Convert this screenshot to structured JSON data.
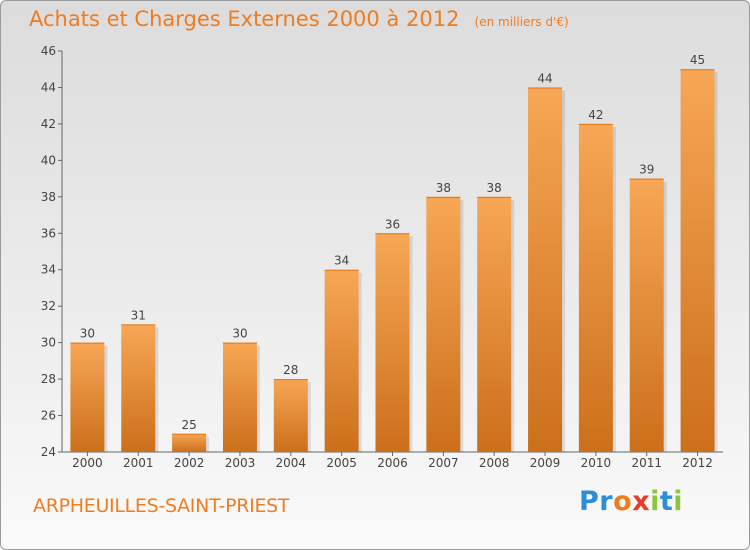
{
  "title": "Achats et Charges Externes 2000 à 2012",
  "units": "(en milliers d'€)",
  "commune": "ARPHEUILLES-SAINT-PRIEST",
  "logo": {
    "text": "Proxiti",
    "letters": [
      {
        "ch": "P",
        "color": "#2a8fd6"
      },
      {
        "ch": "r",
        "color": "#2a8fd6"
      },
      {
        "ch": "o",
        "color": "#f07c1e"
      },
      {
        "ch": "x",
        "color": "#e8392a"
      },
      {
        "ch": "i",
        "color": "#8cc43a"
      },
      {
        "ch": "t",
        "color": "#2a8fd6"
      },
      {
        "ch": "i",
        "color": "#8cc43a"
      }
    ]
  },
  "colors": {
    "accent": "#f07c1e",
    "bar_light": "#f7a755",
    "bar_dark": "#cc6f1b"
  },
  "chart_data": {
    "type": "bar",
    "categories": [
      "2000",
      "2001",
      "2002",
      "2003",
      "2004",
      "2005",
      "2006",
      "2007",
      "2008",
      "2009",
      "2010",
      "2011",
      "2012"
    ],
    "values": [
      30,
      31,
      25,
      30,
      28,
      34,
      36,
      38,
      38,
      44,
      42,
      39,
      45
    ],
    "ylim": [
      24,
      46
    ],
    "yticks": [
      24,
      26,
      28,
      30,
      32,
      34,
      36,
      38,
      40,
      42,
      44,
      46
    ],
    "grid": false,
    "legend": "none"
  }
}
